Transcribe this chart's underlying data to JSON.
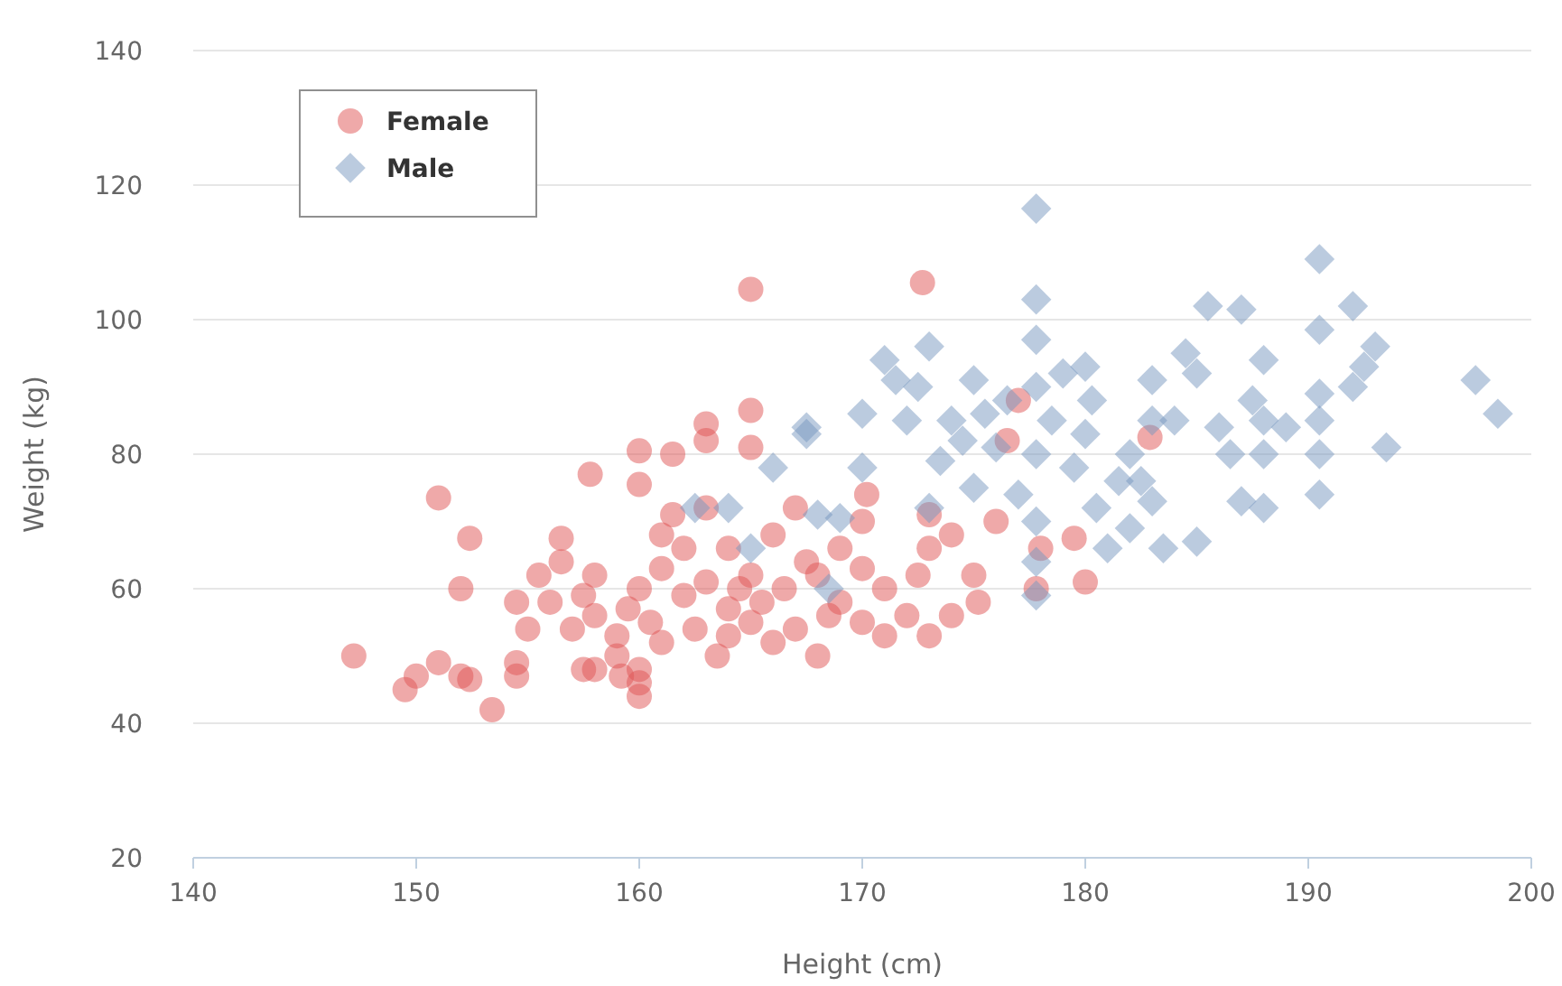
{
  "chart_data": {
    "type": "scatter",
    "xlabel": "Height (cm)",
    "ylabel": "Weight (kg)",
    "xlim": [
      140,
      200
    ],
    "xticks": [
      140,
      150,
      160,
      170,
      180,
      190,
      200
    ],
    "ylim": [
      20,
      140
    ],
    "yticks": [
      20,
      40,
      60,
      80,
      100,
      120,
      140
    ],
    "grid": "y",
    "legend": "top left",
    "series": [
      {
        "name": "Female",
        "color": "#df5353",
        "marker": "circle",
        "x": [
          147.2,
          149.5,
          150,
          151,
          151,
          152,
          152,
          152.4,
          152.4,
          153.4,
          154.5,
          154.5,
          154.5,
          155,
          155.5,
          156,
          156.5,
          156.5,
          157,
          157.5,
          157.5,
          157.8,
          158,
          158,
          158,
          159,
          159,
          159.2,
          159.5,
          160,
          160,
          160,
          160,
          160,
          160,
          160.5,
          161,
          161,
          161,
          161.5,
          161.5,
          162,
          162,
          162.5,
          163,
          163,
          163,
          163,
          163.5,
          164,
          164,
          164,
          164.5,
          165,
          165,
          165,
          165,
          165,
          165.5,
          166,
          166,
          166.5,
          167,
          167,
          167.5,
          168,
          168,
          168.5,
          169,
          169,
          170,
          170,
          170,
          170.2,
          171,
          171,
          172,
          172.5,
          172.7,
          173,
          173,
          173,
          174,
          174,
          175,
          175.2,
          176,
          176.5,
          177,
          177.8,
          178,
          179.5,
          180,
          182.9
        ],
        "values": [
          50,
          45,
          47,
          49,
          73.5,
          47,
          60,
          67.5,
          46.5,
          42,
          58,
          49,
          47,
          54,
          62,
          58,
          64,
          67.5,
          54,
          48,
          59,
          77,
          56,
          62,
          48,
          53,
          50,
          47,
          57,
          60,
          48,
          44,
          46,
          75.5,
          80.5,
          55,
          52,
          63,
          68,
          71,
          80,
          59,
          66,
          54,
          72,
          61,
          84.5,
          82,
          50,
          57,
          53,
          66,
          60,
          104.5,
          86.5,
          81,
          62,
          55,
          58,
          52,
          68,
          60,
          54,
          72,
          64,
          62,
          50,
          56,
          66,
          58,
          70,
          63,
          55,
          74,
          60,
          53,
          56,
          62,
          105.5,
          71,
          66,
          53,
          56,
          68,
          62,
          58,
          70,
          82,
          88,
          60,
          66,
          67.5,
          61,
          82.5
        ]
      },
      {
        "name": "Male",
        "color": "#7798bf",
        "marker": "diamond",
        "x": [
          162.5,
          164,
          165,
          166,
          167.5,
          167.5,
          168,
          168.5,
          169,
          170,
          170,
          171,
          171.5,
          172,
          172.5,
          173,
          173,
          173.5,
          174,
          174.5,
          175,
          175,
          175.5,
          176,
          176.5,
          177,
          177.8,
          177.8,
          177.8,
          177.8,
          177.8,
          177.8,
          177.8,
          177.8,
          178.5,
          179,
          179.5,
          180,
          180,
          180.3,
          180.5,
          181,
          181.5,
          182,
          182,
          182.5,
          183,
          183,
          183,
          183.5,
          184,
          184.5,
          185,
          185,
          185.5,
          186,
          186.5,
          187,
          187,
          187.5,
          188,
          188,
          188,
          188,
          189,
          190.5,
          190.5,
          190.5,
          190.5,
          190.5,
          190.5,
          192,
          192,
          192.5,
          193,
          193.5,
          197.5,
          198.5
        ],
        "values": [
          72,
          72,
          66,
          78,
          83,
          84,
          71,
          60,
          70.5,
          86,
          78,
          94,
          91,
          85,
          90,
          96,
          72,
          79,
          85,
          82,
          91,
          75,
          86,
          81,
          88,
          74,
          116.5,
          103,
          97,
          90,
          80,
          70,
          64,
          59,
          85,
          92,
          78,
          93,
          83,
          88,
          72,
          66,
          76,
          80,
          69,
          76,
          91,
          85,
          73,
          66,
          85,
          95,
          67,
          92,
          102,
          84,
          80,
          73,
          101.5,
          88,
          94,
          85,
          80,
          72,
          84,
          109,
          98.5,
          89,
          85,
          80,
          74,
          102,
          90,
          93,
          96,
          81,
          91,
          86
        ]
      }
    ]
  }
}
